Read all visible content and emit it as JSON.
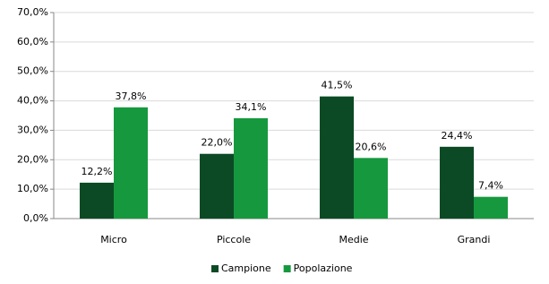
{
  "chart_data": {
    "type": "bar",
    "categories": [
      "Micro",
      "Piccole",
      "Medie",
      "Grandi"
    ],
    "series": [
      {
        "name": "Campione",
        "color": "#0b4a25",
        "values": [
          12.2,
          22.0,
          41.5,
          24.4
        ],
        "value_labels": [
          "12,2%",
          "22,0%",
          "41,5%",
          "24,4%"
        ]
      },
      {
        "name": "Popolazione",
        "color": "#16993e",
        "values": [
          37.8,
          34.1,
          20.6,
          7.4
        ],
        "value_labels": [
          "37,8%",
          "34,1%",
          "20,6%",
          "7,4%"
        ]
      }
    ],
    "ylim": [
      0,
      70
    ],
    "yticks": [
      {
        "value": 0,
        "label": "0,0%"
      },
      {
        "value": 10,
        "label": "10,0%"
      },
      {
        "value": 20,
        "label": "20,0%"
      },
      {
        "value": 30,
        "label": "30,0%"
      },
      {
        "value": 40,
        "label": "40,0%"
      },
      {
        "value": 50,
        "label": "50,0%"
      },
      {
        "value": 60,
        "label": "60,0%"
      },
      {
        "value": 70,
        "label": "70,0%"
      }
    ],
    "grid": true,
    "legend": "bottom"
  }
}
